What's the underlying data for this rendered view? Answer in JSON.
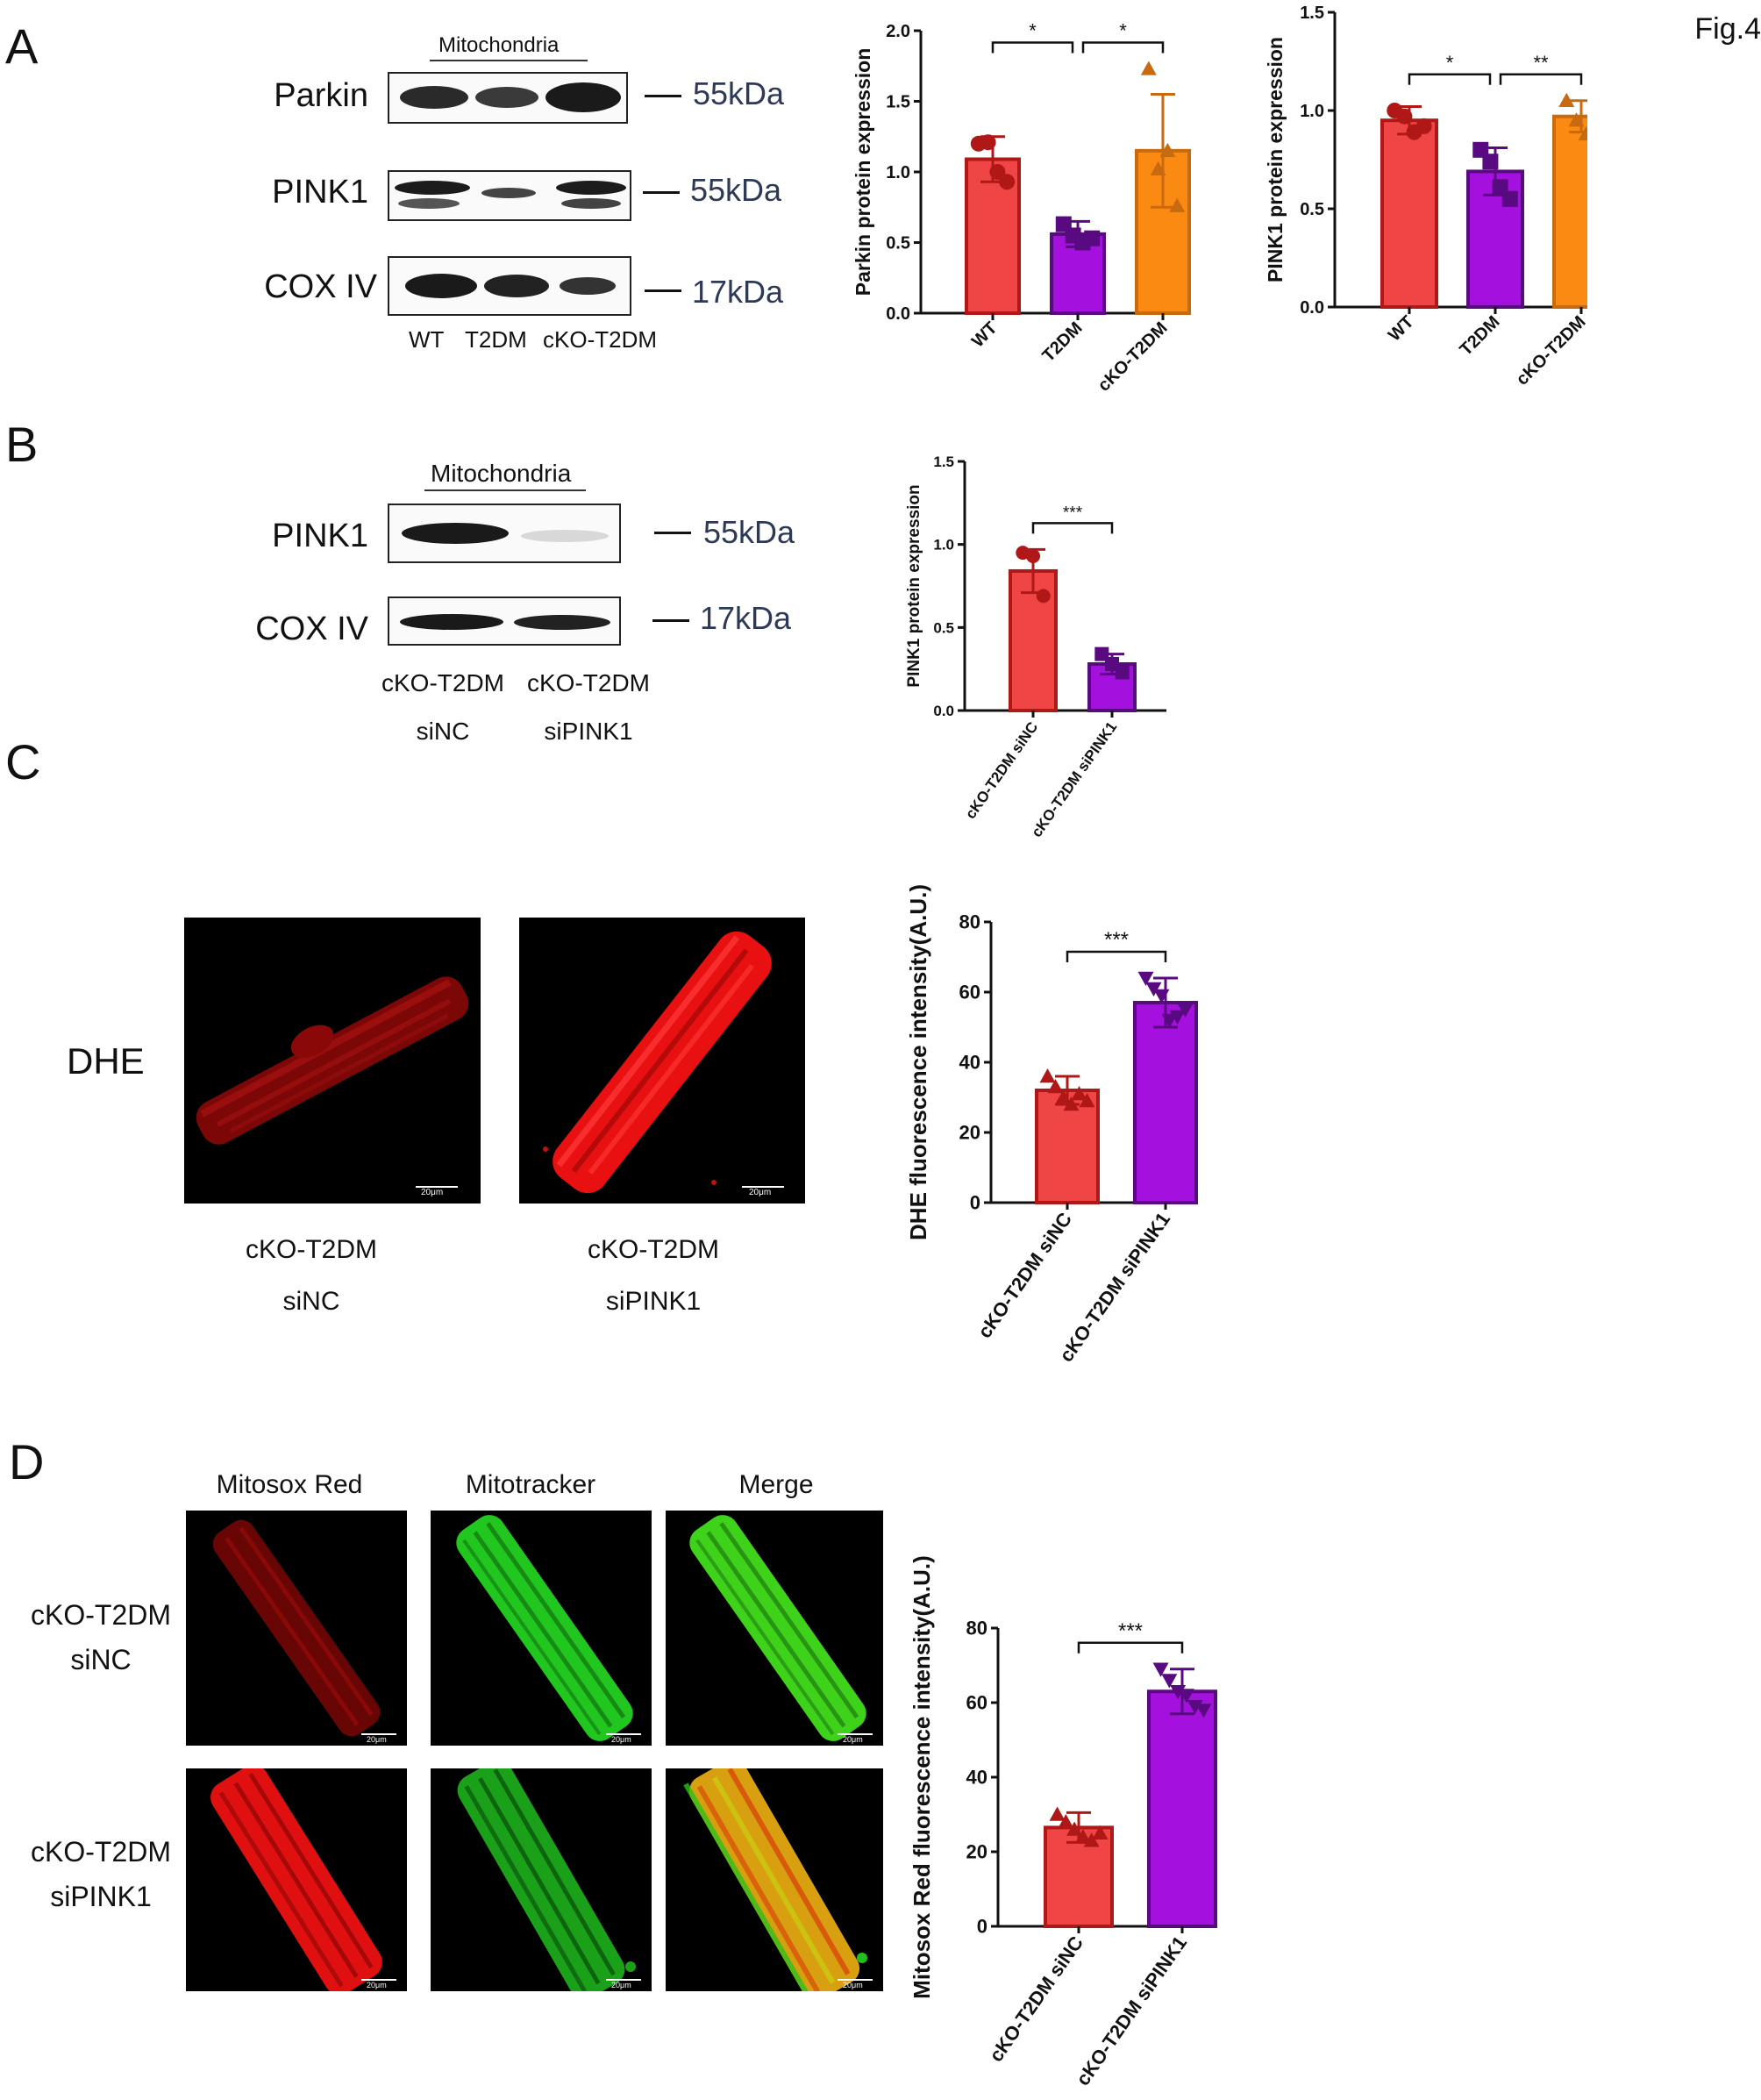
{
  "figure_label": "Fig.4",
  "panels": {
    "A": {
      "letter": "A",
      "blot": {
        "header": "Mitochondria",
        "rows": [
          {
            "protein": "Parkin",
            "kda": "55kDa"
          },
          {
            "protein": "PINK1",
            "kda": "55kDa"
          },
          {
            "protein": "COX IV",
            "kda": "17kDa"
          }
        ],
        "lanes": [
          "WT",
          "T2DM",
          "cKO-T2DM"
        ]
      }
    },
    "B": {
      "letter": "B",
      "blot": {
        "header": "Mitochondria",
        "rows": [
          {
            "protein": "PINK1",
            "kda": "55kDa"
          },
          {
            "protein": "COX IV",
            "kda": "17kDa"
          }
        ],
        "lanes": [
          {
            "line1": "cKO-T2DM",
            "line2": "siNC"
          },
          {
            "line1": "cKO-T2DM",
            "line2": "siPINK1"
          }
        ]
      }
    },
    "C": {
      "letter": "C",
      "stain": "DHE",
      "images": [
        {
          "line1": "cKO-T2DM",
          "line2": "siNC",
          "scale": "20μm"
        },
        {
          "line1": "cKO-T2DM",
          "line2": "siPINK1",
          "scale": "20μm"
        }
      ]
    },
    "D": {
      "letter": "D",
      "columns": [
        "Mitosox Red",
        "Mitotracker",
        "Merge"
      ],
      "rows": [
        {
          "line1": "cKO-T2DM",
          "line2": "siNC"
        },
        {
          "line1": "cKO-T2DM",
          "line2": "siPINK1"
        }
      ],
      "scale": "20μm"
    }
  },
  "colors": {
    "red_bar": "#f04545",
    "red_edge": "#b01818",
    "purple_bar": "#a411df",
    "purple_edge": "#5a0a80",
    "orange_bar": "#fb8a13",
    "orange_edge": "#c86a10"
  },
  "chart_data": [
    {
      "id": "parkin",
      "type": "bar",
      "ylabel": "Parkin protein expression",
      "ylim": [
        0,
        2.0
      ],
      "yticks": [
        "0.0",
        "0.5",
        "1.0",
        "1.5",
        "2.0"
      ],
      "categories": [
        "WT",
        "T2DM",
        "cKO-T2DM"
      ],
      "values": [
        1.09,
        0.56,
        1.15
      ],
      "errors": [
        0.16,
        0.09,
        0.4
      ],
      "points": [
        [
          1.2,
          1.21,
          1.0,
          0.93
        ],
        [
          0.63,
          0.55,
          0.5,
          0.53
        ],
        [
          1.73,
          1.02,
          1.15,
          0.76
        ]
      ],
      "significance": [
        {
          "from": 0,
          "to": 1,
          "label": "*"
        },
        {
          "from": 1,
          "to": 2,
          "label": "*"
        }
      ]
    },
    {
      "id": "pink1_a",
      "type": "bar",
      "ylabel": "PINK1 protein expression",
      "ylim": [
        0,
        1.5
      ],
      "yticks": [
        "0.0",
        "0.5",
        "1.0",
        "1.5"
      ],
      "categories": [
        "WT",
        "T2DM",
        "cKO-T2DM"
      ],
      "values": [
        0.95,
        0.69,
        0.97
      ],
      "errors": [
        0.07,
        0.12,
        0.08
      ],
      "points": [
        [
          1.0,
          0.97,
          0.89,
          0.92
        ],
        [
          0.8,
          0.74,
          0.61,
          0.55
        ],
        [
          1.05,
          0.95,
          0.88,
          1.0
        ]
      ],
      "significance": [
        {
          "from": 0,
          "to": 1,
          "label": "*"
        },
        {
          "from": 1,
          "to": 2,
          "label": "**"
        }
      ]
    },
    {
      "id": "pink1_b",
      "type": "bar",
      "ylabel": "PINK1 protein expression",
      "ylim": [
        0,
        1.5
      ],
      "yticks": [
        "0.0",
        "0.5",
        "1.0",
        "1.5"
      ],
      "categories": [
        "cKO-T2DM siNC",
        "cKO-T2DM siPINK1"
      ],
      "values": [
        0.84,
        0.28
      ],
      "errors": [
        0.13,
        0.06
      ],
      "points": [
        [
          0.95,
          0.93,
          0.69
        ],
        [
          0.34,
          0.28,
          0.23
        ]
      ],
      "significance": [
        {
          "from": 0,
          "to": 1,
          "label": "***"
        }
      ]
    },
    {
      "id": "dhe",
      "type": "bar",
      "ylabel": "DHE fluorescence intensity(A.U.)",
      "ylim": [
        0,
        80
      ],
      "yticks": [
        "0",
        "20",
        "40",
        "60",
        "80"
      ],
      "categories": [
        "cKO-T2DM siNC",
        "cKO-T2DM siPINK1"
      ],
      "values": [
        32,
        57
      ],
      "errors": [
        4,
        7
      ],
      "points": [
        [
          36,
          33,
          30,
          28,
          31,
          29
        ],
        [
          64,
          61,
          59,
          52,
          53,
          55
        ]
      ],
      "significance": [
        {
          "from": 0,
          "to": 1,
          "label": "***"
        }
      ]
    },
    {
      "id": "mitosox",
      "type": "bar",
      "ylabel": "Mitosox Red fluorescence intensity(A.U.)",
      "ylim": [
        0,
        80
      ],
      "yticks": [
        "0",
        "20",
        "40",
        "60",
        "80"
      ],
      "categories": [
        "cKO-T2DM siNC",
        "cKO-T2DM siPINK1"
      ],
      "values": [
        26.5,
        63
      ],
      "errors": [
        4,
        6
      ],
      "points": [
        [
          30,
          28,
          26,
          24,
          23,
          25
        ],
        [
          69,
          66,
          63,
          62,
          59,
          58
        ]
      ],
      "significance": [
        {
          "from": 0,
          "to": 1,
          "label": "***"
        }
      ]
    }
  ]
}
